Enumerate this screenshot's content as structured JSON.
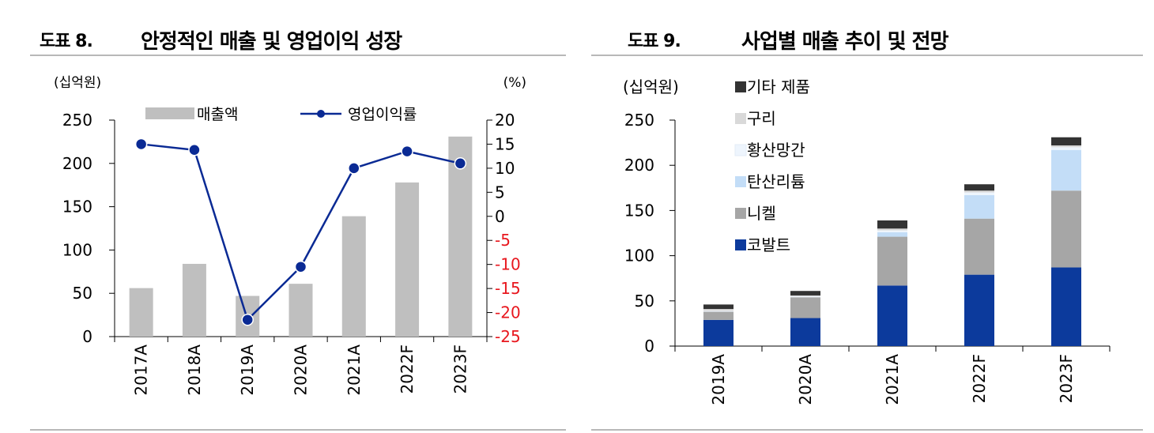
{
  "figures": [
    {
      "label": "도표 8.",
      "title": "안정적인 매출 및 영업이익 성장"
    },
    {
      "label": "도표 9.",
      "title": "사업별 매출 추이 및 전망"
    }
  ],
  "chart_data": [
    {
      "type": "bar+line",
      "title": "안정적인 매출 및 영업이익 성장",
      "categories": [
        "2017A",
        "2018A",
        "2019A",
        "2020A",
        "2021A",
        "2022F",
        "2023F"
      ],
      "y_left_unit": "(십억원)",
      "y_right_unit": "(%)",
      "y_left_lim": [
        0,
        250
      ],
      "y_left_ticks": [
        "0",
        "50",
        "100",
        "150",
        "200",
        "250"
      ],
      "y_right_lim": [
        -25,
        20
      ],
      "y_right_ticks": [
        "-25",
        "-20",
        "-15",
        "-10",
        "-5",
        "0",
        "5",
        "10",
        "15",
        "20"
      ],
      "legend_position": "top",
      "series": [
        {
          "name": "매출액",
          "type": "bar",
          "axis": "left",
          "color": "#bfbfbf",
          "values": [
            56,
            84,
            47,
            61,
            139,
            178,
            231
          ]
        },
        {
          "name": "영업이익률",
          "type": "line",
          "axis": "right",
          "color": "#0a2a94",
          "values": [
            15,
            13.8,
            -21.5,
            -10.5,
            10,
            13.5,
            11
          ]
        }
      ],
      "negative_tick_color": "#e8171e"
    },
    {
      "type": "stacked_bar",
      "title": "사업별 매출 추이 및 전망",
      "categories": [
        "2019A",
        "2020A",
        "2021A",
        "2022F",
        "2023F"
      ],
      "y_unit": "(십억원)",
      "ylim": [
        0,
        250
      ],
      "y_ticks": [
        "0",
        "50",
        "100",
        "150",
        "200",
        "250"
      ],
      "legend_position": "top-left",
      "series": [
        {
          "name": "코발트",
          "color": "#0c3a9c",
          "values": [
            29,
            31,
            67,
            79,
            87
          ]
        },
        {
          "name": "니켈",
          "color": "#a6a6a6",
          "values": [
            9,
            23,
            54,
            62,
            85
          ]
        },
        {
          "name": "탄산리튬",
          "color": "#c3ddf7",
          "values": [
            0,
            0,
            5,
            26,
            45
          ]
        },
        {
          "name": "황산망간",
          "color": "#eef5fd",
          "values": [
            1,
            1,
            2,
            3,
            3
          ]
        },
        {
          "name": "구리",
          "color": "#d9d9d9",
          "values": [
            2,
            1,
            2,
            2,
            2
          ]
        },
        {
          "name": "기타 제품",
          "color": "#333333",
          "values": [
            5,
            5,
            9,
            7,
            9
          ]
        }
      ]
    }
  ]
}
